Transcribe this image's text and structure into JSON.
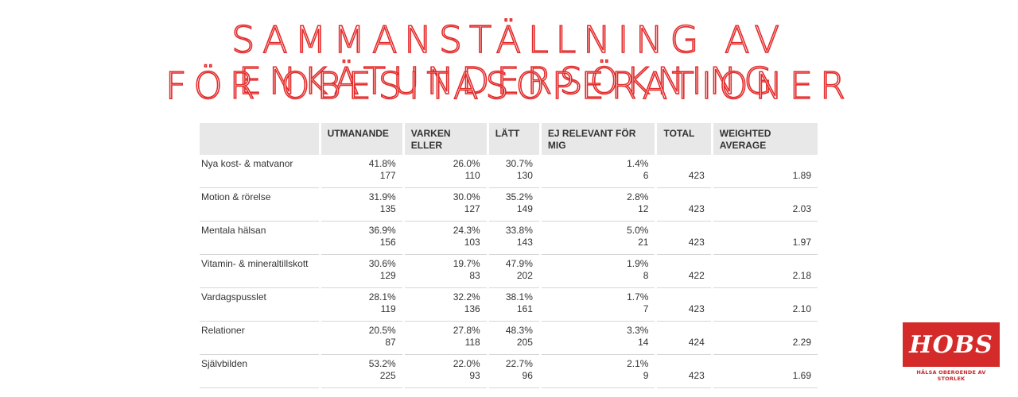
{
  "title": {
    "line1": "SAMMANSTÄLLNING AV ENKÄTUNDERSÖKNING",
    "line2": "FÖR OBESITASOPERATIONER"
  },
  "colors": {
    "title_outline": "#e32b2b",
    "header_bg": "#e8e8e8",
    "logo_red": "#d42a2a"
  },
  "table": {
    "headers": [
      "",
      "UTMANANDE",
      "VARKEN ELLER",
      "LÄTT",
      "EJ RELEVANT FÖR MIG",
      "TOTAL",
      "WEIGHTED AVERAGE"
    ],
    "rows": [
      {
        "label": "Nya kost- & matvanor",
        "utmanande": {
          "pct": "41.8%",
          "n": "177"
        },
        "varken": {
          "pct": "26.0%",
          "n": "110"
        },
        "latt": {
          "pct": "30.7%",
          "n": "130"
        },
        "ej": {
          "pct": "1.4%",
          "n": "6"
        },
        "total": "423",
        "avg": "1.89"
      },
      {
        "label": "Motion & rörelse",
        "utmanande": {
          "pct": "31.9%",
          "n": "135"
        },
        "varken": {
          "pct": "30.0%",
          "n": "127"
        },
        "latt": {
          "pct": "35.2%",
          "n": "149"
        },
        "ej": {
          "pct": "2.8%",
          "n": "12"
        },
        "total": "423",
        "avg": "2.03"
      },
      {
        "label": "Mentala hälsan",
        "utmanande": {
          "pct": "36.9%",
          "n": "156"
        },
        "varken": {
          "pct": "24.3%",
          "n": "103"
        },
        "latt": {
          "pct": "33.8%",
          "n": "143"
        },
        "ej": {
          "pct": "5.0%",
          "n": "21"
        },
        "total": "423",
        "avg": "1.97"
      },
      {
        "label": "Vitamin- & mineraltillskott",
        "utmanande": {
          "pct": "30.6%",
          "n": "129"
        },
        "varken": {
          "pct": "19.7%",
          "n": "83"
        },
        "latt": {
          "pct": "47.9%",
          "n": "202"
        },
        "ej": {
          "pct": "1.9%",
          "n": "8"
        },
        "total": "422",
        "avg": "2.18"
      },
      {
        "label": "Vardagspusslet",
        "utmanande": {
          "pct": "28.1%",
          "n": "119"
        },
        "varken": {
          "pct": "32.2%",
          "n": "136"
        },
        "latt": {
          "pct": "38.1%",
          "n": "161"
        },
        "ej": {
          "pct": "1.7%",
          "n": "7"
        },
        "total": "423",
        "avg": "2.10"
      },
      {
        "label": "Relationer",
        "utmanande": {
          "pct": "20.5%",
          "n": "87"
        },
        "varken": {
          "pct": "27.8%",
          "n": "118"
        },
        "latt": {
          "pct": "48.3%",
          "n": "205"
        },
        "ej": {
          "pct": "3.3%",
          "n": "14"
        },
        "total": "424",
        "avg": "2.29"
      },
      {
        "label": "Självbilden",
        "utmanande": {
          "pct": "53.2%",
          "n": "225"
        },
        "varken": {
          "pct": "22.0%",
          "n": "93"
        },
        "latt": {
          "pct": "22.7%",
          "n": "96"
        },
        "ej": {
          "pct": "2.1%",
          "n": "9"
        },
        "total": "423",
        "avg": "1.69"
      }
    ]
  },
  "logo": {
    "text": "HOBS",
    "tagline": "HÄLSA OBEROENDE AV STORLEK"
  }
}
